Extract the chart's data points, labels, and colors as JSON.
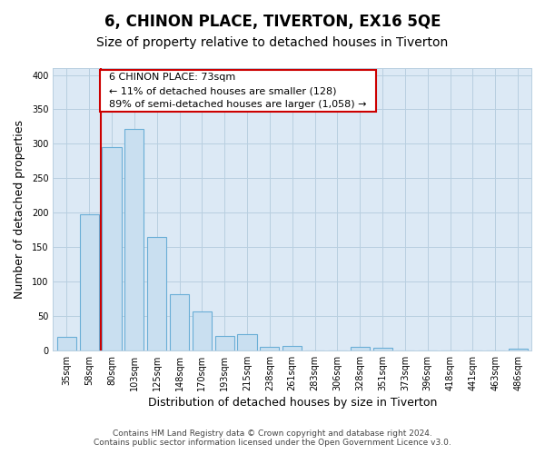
{
  "title": "6, CHINON PLACE, TIVERTON, EX16 5QE",
  "subtitle": "Size of property relative to detached houses in Tiverton",
  "xlabel": "Distribution of detached houses by size in Tiverton",
  "ylabel": "Number of detached properties",
  "categories": [
    "35sqm",
    "58sqm",
    "80sqm",
    "103sqm",
    "125sqm",
    "148sqm",
    "170sqm",
    "193sqm",
    "215sqm",
    "238sqm",
    "261sqm",
    "283sqm",
    "306sqm",
    "328sqm",
    "351sqm",
    "373sqm",
    "396sqm",
    "418sqm",
    "441sqm",
    "463sqm",
    "486sqm"
  ],
  "bar_heights": [
    20,
    197,
    295,
    322,
    165,
    82,
    57,
    21,
    23,
    5,
    6,
    0,
    0,
    5,
    4,
    0,
    0,
    0,
    0,
    0,
    3
  ],
  "bar_color": "#c9dff0",
  "bar_edge_color": "#6aaed6",
  "red_line_x": 1.5,
  "annotation_title": "6 CHINON PLACE: 73sqm",
  "annotation_line1": "← 11% of detached houses are smaller (128)",
  "annotation_line2": "89% of semi-detached houses are larger (1,058) →",
  "annotation_box_facecolor": "#ffffff",
  "annotation_box_edgecolor": "#cc0000",
  "ylim": [
    0,
    410
  ],
  "yticks": [
    0,
    50,
    100,
    150,
    200,
    250,
    300,
    350,
    400
  ],
  "footer_line1": "Contains HM Land Registry data © Crown copyright and database right 2024.",
  "footer_line2": "Contains public sector information licensed under the Open Government Licence v3.0.",
  "fig_bg_color": "#ffffff",
  "plot_bg_color": "#dce9f5",
  "grid_color": "#b8cfe0",
  "title_fontsize": 12,
  "subtitle_fontsize": 10,
  "axis_label_fontsize": 9,
  "tick_fontsize": 7,
  "annotation_fontsize": 8,
  "footer_fontsize": 6.5
}
